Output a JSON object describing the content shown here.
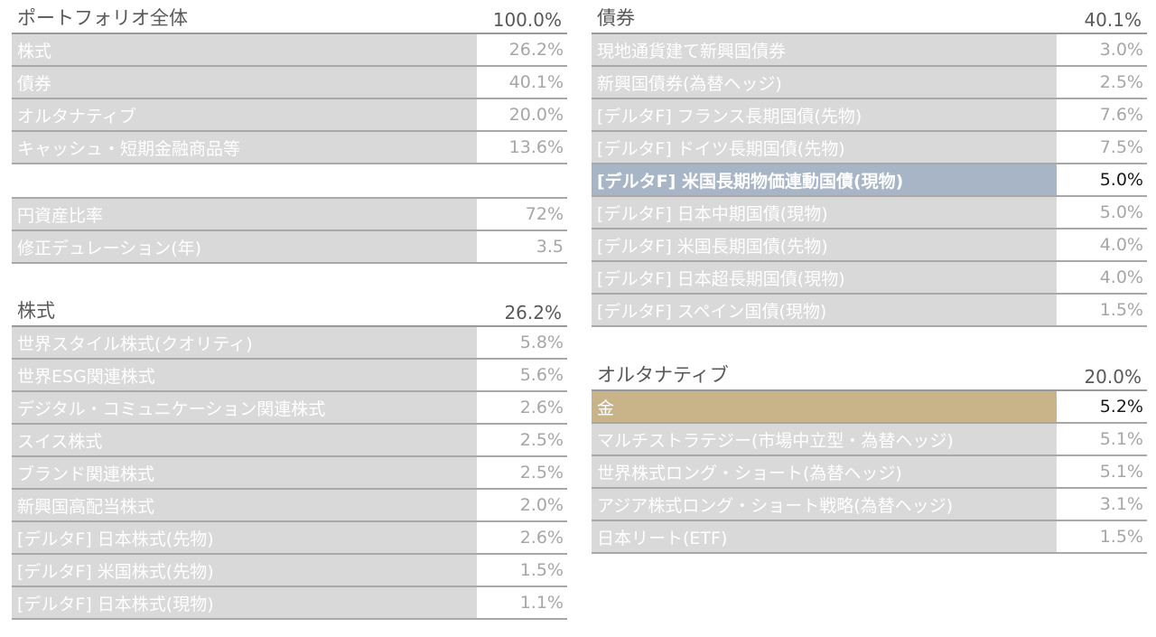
{
  "portfolio": {
    "title": "ポートフォリオ全体",
    "total": "100.0%",
    "rows": [
      {
        "label": "株式",
        "value": "26.2%"
      },
      {
        "label": "債券",
        "value": "40.1%"
      },
      {
        "label": "オルタナティブ",
        "value": "20.0%"
      },
      {
        "label": "キャッシュ・短期金融商品等",
        "value": "13.6%"
      }
    ]
  },
  "metrics": {
    "rows": [
      {
        "label": "円資産比率",
        "value": "72%"
      },
      {
        "label": "修正デュレーション(年)",
        "value": "3.5"
      }
    ]
  },
  "equity": {
    "title": "株式",
    "total": "26.2%",
    "rows": [
      {
        "label": "世界スタイル株式(クオリティ)",
        "value": "5.8%"
      },
      {
        "label": "世界ESG関連株式",
        "value": "5.6%"
      },
      {
        "label": "デジタル・コミュニケーション関連株式",
        "value": "2.6%"
      },
      {
        "label": "スイス株式",
        "value": "2.5%"
      },
      {
        "label": "ブランド関連株式",
        "value": "2.5%"
      },
      {
        "label": "新興国高配当株式",
        "value": "2.0%"
      },
      {
        "label": "[デルタF] 日本株式(先物)",
        "value": "2.6%"
      },
      {
        "label": "[デルタF] 米国株式(先物)",
        "value": "1.5%"
      },
      {
        "label": "[デルタF] 日本株式(現物)",
        "value": "1.1%"
      }
    ]
  },
  "bonds": {
    "title": "債券",
    "total": "40.1%",
    "rows": [
      {
        "label": "現地通貨建て新興国債券",
        "value": "3.0%"
      },
      {
        "label": "新興国債券(為替ヘッジ)",
        "value": "2.5%"
      },
      {
        "label": "[デルタF] フランス長期国債(先物)",
        "value": "7.6%"
      },
      {
        "label": "[デルタF] ドイツ長期国債(先物)",
        "value": "7.5%"
      },
      {
        "label": "[デルタF] 米国長期物価連動国債(現物)",
        "value": "5.0%"
      },
      {
        "label": "[デルタF] 日本中期国債(現物)",
        "value": "5.0%"
      },
      {
        "label": "[デルタF] 米国長期国債(先物)",
        "value": "4.0%"
      },
      {
        "label": "[デルタF] 日本超長期国債(現物)",
        "value": "4.0%"
      },
      {
        "label": "[デルタF] スペイン国債(現物)",
        "value": "1.5%"
      }
    ]
  },
  "alternatives": {
    "title": "オルタナティブ",
    "total": "20.0%",
    "rows": [
      {
        "label": "金",
        "value": "5.2%"
      },
      {
        "label": "マルチストラテジー(市場中立型・為替ヘッジ)",
        "value": "5.1%"
      },
      {
        "label": "世界株式ロング・ショート(為替ヘッジ)",
        "value": "5.1%"
      },
      {
        "label": "アジア株式ロング・ショート戦略(為替ヘッジ)",
        "value": "3.1%"
      },
      {
        "label": "日本リート(ETF)",
        "value": "1.5%"
      }
    ]
  },
  "colors": {
    "row_bg": "#d9d9d9",
    "highlight_blue": "#a7b5c7",
    "highlight_gold": "#c9b48a"
  }
}
